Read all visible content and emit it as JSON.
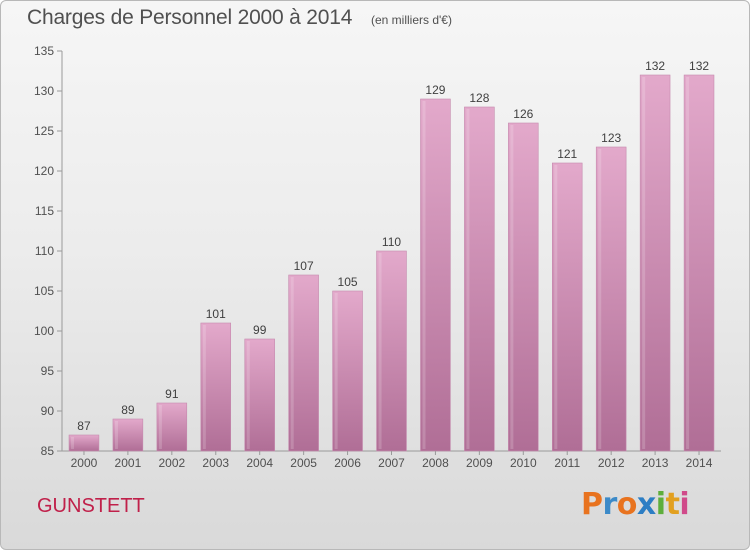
{
  "header": {
    "title": "Charges de Personnel 2000 à 2014",
    "subtitle": "(en milliers d'€)"
  },
  "footer": {
    "commune": "GUNSTETT",
    "logo_text": "Proxiti"
  },
  "colors": {
    "bar_top": "#e3a9cb",
    "bar_bottom": "#b06e96",
    "commune_text": "#c0204a",
    "axis_text": "#505050"
  },
  "chart_data": {
    "type": "bar",
    "title": "Charges de Personnel 2000 à 2014",
    "subtitle": "(en milliers d'€)",
    "xlabel": "",
    "ylabel": "",
    "categories": [
      "2000",
      "2001",
      "2002",
      "2003",
      "2004",
      "2005",
      "2006",
      "2007",
      "2008",
      "2009",
      "2010",
      "2011",
      "2012",
      "2013",
      "2014"
    ],
    "values": [
      87,
      89,
      91,
      101,
      99,
      107,
      105,
      110,
      129,
      128,
      126,
      121,
      123,
      132,
      132
    ],
    "ylim": [
      85,
      135
    ],
    "yticks": [
      85,
      90,
      95,
      100,
      105,
      110,
      115,
      120,
      125,
      130,
      135
    ],
    "grid": false,
    "legend": "none",
    "data_labels": true
  }
}
